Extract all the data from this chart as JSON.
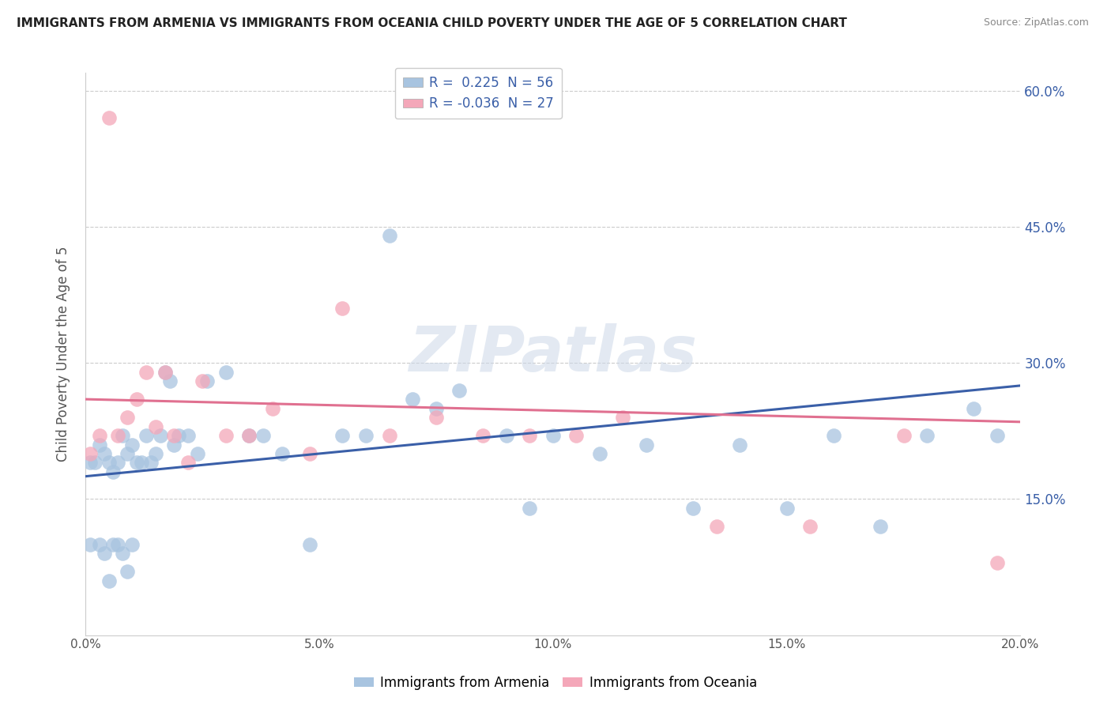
{
  "title": "IMMIGRANTS FROM ARMENIA VS IMMIGRANTS FROM OCEANIA CHILD POVERTY UNDER THE AGE OF 5 CORRELATION CHART",
  "source": "Source: ZipAtlas.com",
  "ylabel": "Child Poverty Under the Age of 5",
  "legend_label1": "Immigrants from Armenia",
  "legend_label2": "Immigrants from Oceania",
  "R1": 0.225,
  "N1": 56,
  "R2": -0.036,
  "N2": 27,
  "color1": "#a8c4e0",
  "color2": "#f4a7b9",
  "line_color1": "#3a5fa8",
  "line_color2": "#e07090",
  "xlim": [
    0.0,
    0.2
  ],
  "ylim": [
    0.0,
    0.62
  ],
  "xtick_vals": [
    0.0,
    0.025,
    0.05,
    0.075,
    0.1,
    0.125,
    0.15,
    0.175,
    0.2
  ],
  "xtick_labels": [
    "0.0%",
    "",
    "5.0%",
    "",
    "10.0%",
    "",
    "15.0%",
    "",
    "20.0%"
  ],
  "ytick_right": [
    "15.0%",
    "30.0%",
    "45.0%",
    "60.0%"
  ],
  "ytick_right_vals": [
    0.15,
    0.3,
    0.45,
    0.6
  ],
  "watermark": "ZIPatlas",
  "armenia_x": [
    0.001,
    0.001,
    0.002,
    0.003,
    0.003,
    0.004,
    0.004,
    0.005,
    0.005,
    0.006,
    0.006,
    0.007,
    0.007,
    0.008,
    0.008,
    0.009,
    0.009,
    0.01,
    0.01,
    0.011,
    0.012,
    0.013,
    0.014,
    0.015,
    0.016,
    0.017,
    0.018,
    0.019,
    0.02,
    0.022,
    0.024,
    0.026,
    0.03,
    0.035,
    0.038,
    0.042,
    0.048,
    0.055,
    0.06,
    0.065,
    0.07,
    0.075,
    0.08,
    0.09,
    0.095,
    0.1,
    0.11,
    0.12,
    0.13,
    0.14,
    0.15,
    0.16,
    0.17,
    0.18,
    0.19,
    0.195
  ],
  "armenia_y": [
    0.19,
    0.1,
    0.19,
    0.21,
    0.1,
    0.2,
    0.09,
    0.19,
    0.06,
    0.18,
    0.1,
    0.19,
    0.1,
    0.22,
    0.09,
    0.2,
    0.07,
    0.21,
    0.1,
    0.19,
    0.19,
    0.22,
    0.19,
    0.2,
    0.22,
    0.29,
    0.28,
    0.21,
    0.22,
    0.22,
    0.2,
    0.28,
    0.29,
    0.22,
    0.22,
    0.2,
    0.1,
    0.22,
    0.22,
    0.44,
    0.26,
    0.25,
    0.27,
    0.22,
    0.14,
    0.22,
    0.2,
    0.21,
    0.14,
    0.21,
    0.14,
    0.22,
    0.12,
    0.22,
    0.25,
    0.22
  ],
  "oceania_x": [
    0.001,
    0.003,
    0.005,
    0.007,
    0.009,
    0.011,
    0.013,
    0.015,
    0.017,
    0.019,
    0.022,
    0.025,
    0.03,
    0.035,
    0.04,
    0.048,
    0.055,
    0.065,
    0.075,
    0.085,
    0.095,
    0.105,
    0.115,
    0.135,
    0.155,
    0.175,
    0.195
  ],
  "oceania_y": [
    0.2,
    0.22,
    0.57,
    0.22,
    0.24,
    0.26,
    0.29,
    0.23,
    0.29,
    0.22,
    0.19,
    0.28,
    0.22,
    0.22,
    0.25,
    0.2,
    0.36,
    0.22,
    0.24,
    0.22,
    0.22,
    0.22,
    0.24,
    0.12,
    0.12,
    0.22,
    0.08
  ],
  "armenia_line_x": [
    0.0,
    0.2
  ],
  "armenia_line_y": [
    0.175,
    0.275
  ],
  "oceania_line_x": [
    0.0,
    0.2
  ],
  "oceania_line_y": [
    0.26,
    0.235
  ]
}
